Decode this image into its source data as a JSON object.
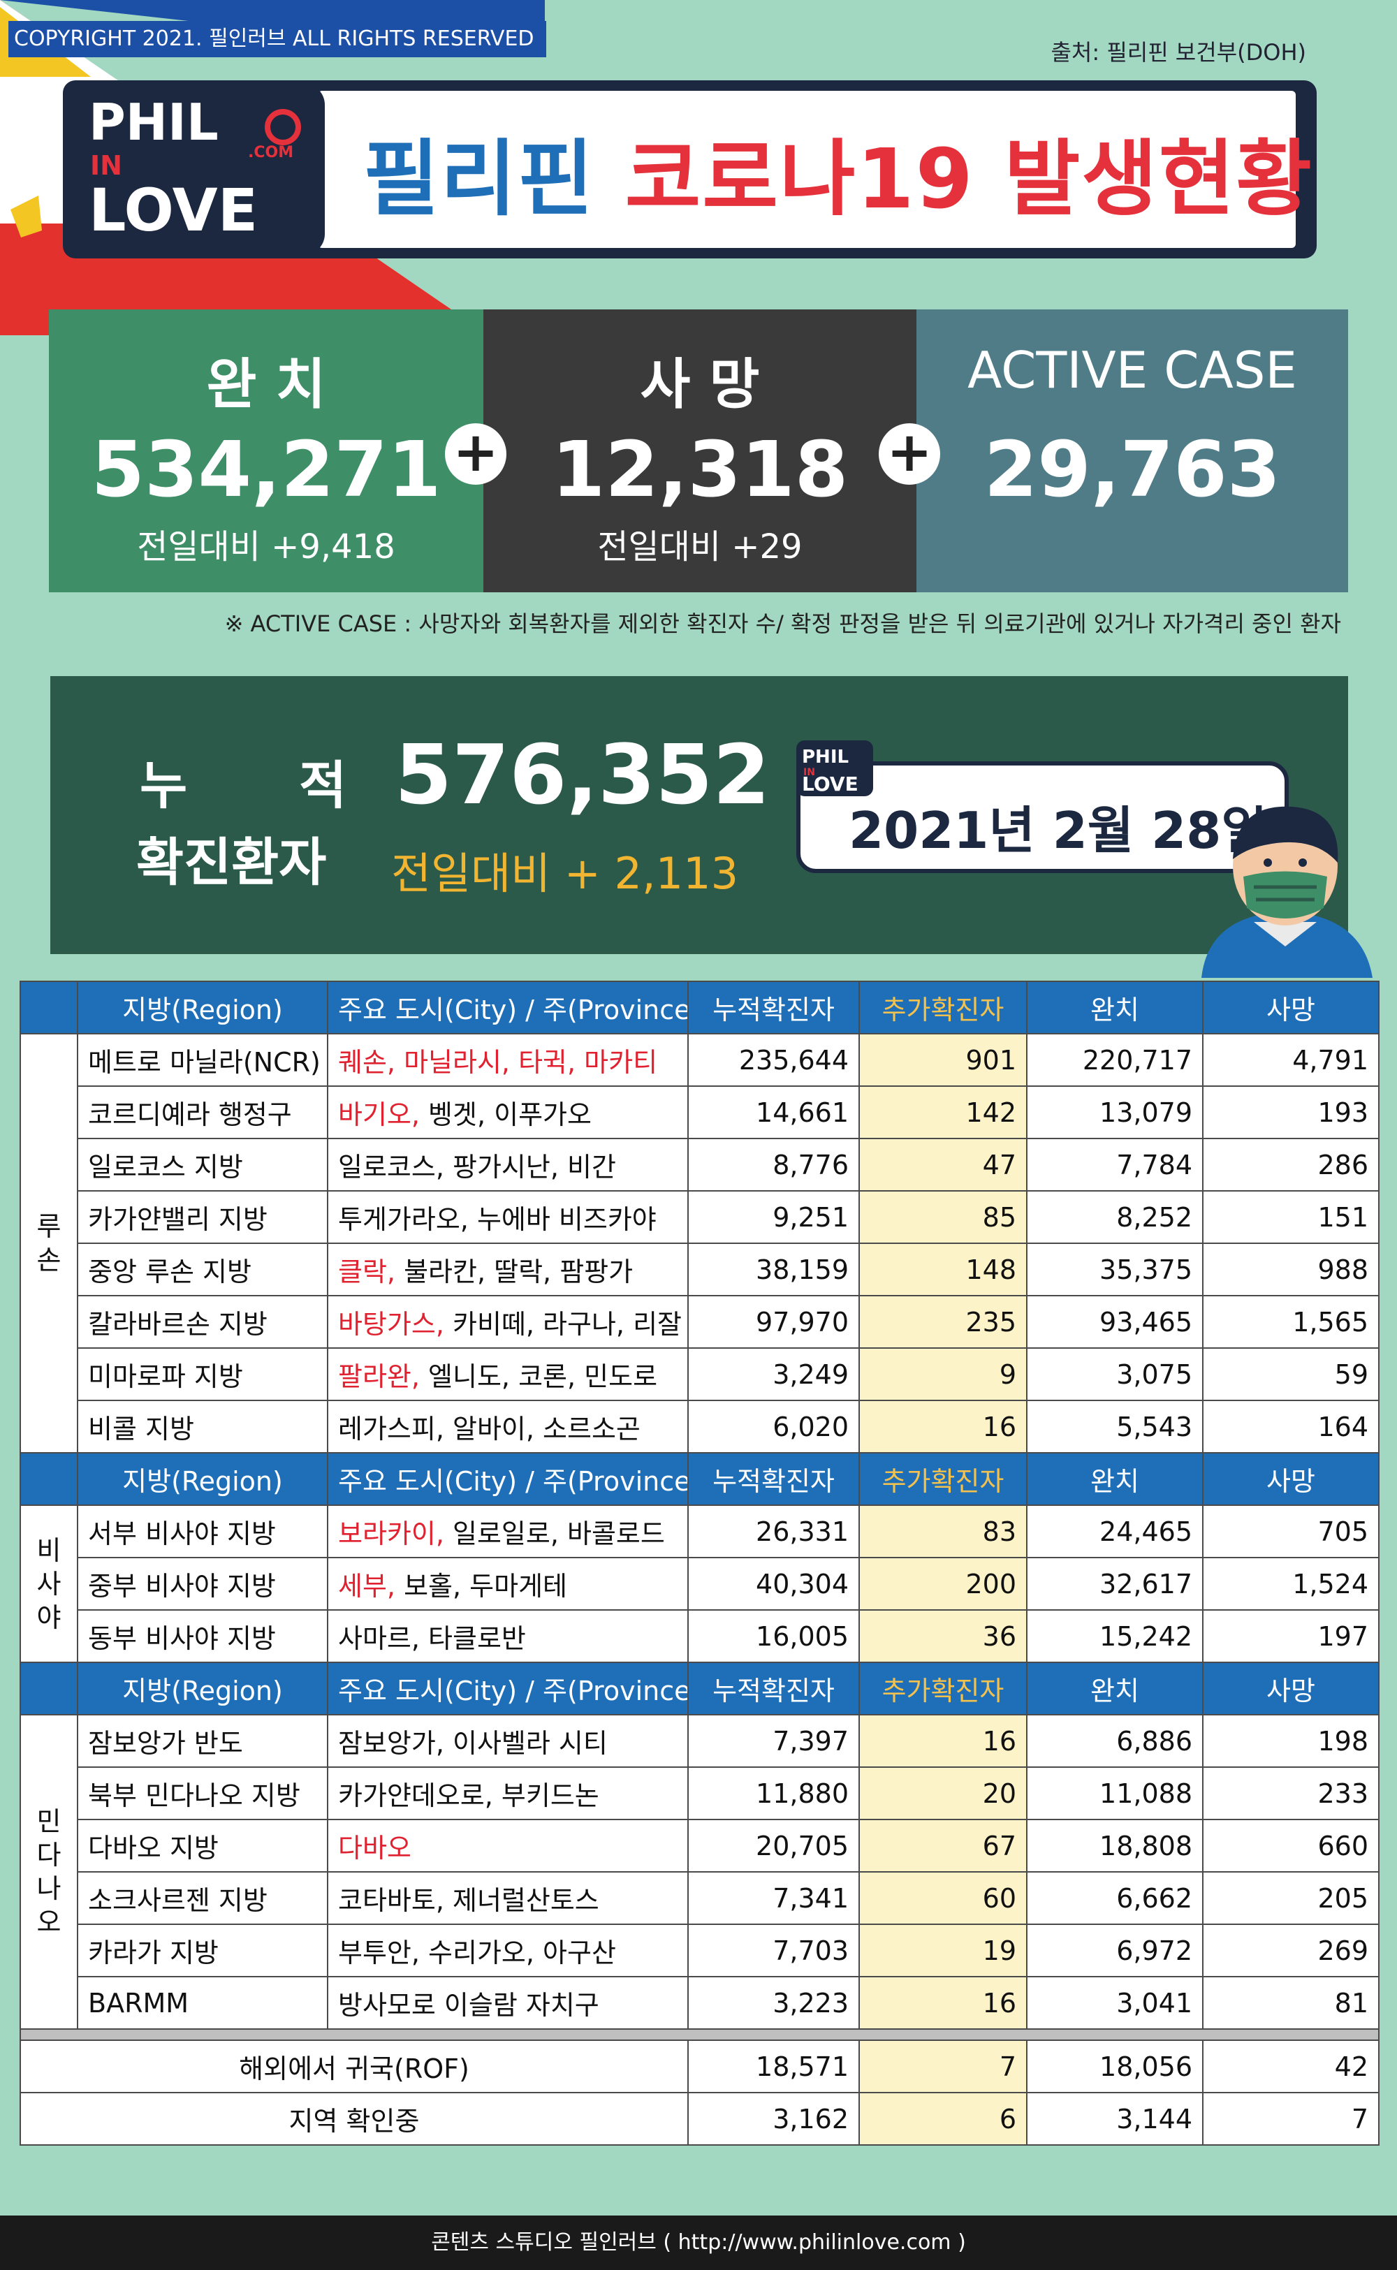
{
  "copyright": "COPYRIGHT 2021. 필인러브 ALL RIGHTS RESERVED",
  "source": "출처: 필리핀 보건부(DOH)",
  "logo": {
    "line1": "PHIL",
    "line2": "IN",
    "line3": "LOVE",
    "dotcom": ".COM"
  },
  "title": {
    "part1": "필리핀",
    "part2": "코로나19 발생현황"
  },
  "stats": {
    "recovered": {
      "label": "완 치",
      "value": "534,271",
      "change": "전일대비 +9,418"
    },
    "deaths": {
      "label": "사 망",
      "value": "12,318",
      "change": "전일대비 +29"
    },
    "active": {
      "label": "ACTIVE CASE",
      "value": "29,763"
    },
    "plus": "+"
  },
  "note": "※ ACTIVE CASE : 사망자와 회복환자를 제외한 확진자 수/ 확정 판정을 받은 뒤 의료기관에 있거나 자가격리 중인 환자",
  "cumulative": {
    "label1": "누적",
    "label2": "확진환자",
    "value": "576,352",
    "change": "전일대비 + 2,113"
  },
  "date": "2021년 2월 28일",
  "colors": {
    "title_blue": "#1f6fb8",
    "title_red": "#e5313b",
    "recovered": "#3e8e67",
    "deaths": "#3a3a3a",
    "active": "#4f7c87",
    "cumulative": "#2b5a4a",
    "table_header": "#1f6fb8",
    "highlight": "#fdf3c8",
    "accent_red": "#e0212f"
  },
  "table": {
    "headers": [
      "지방(Region)",
      "주요 도시(City) / 주(Province)",
      "누적확진자",
      "추가확진자",
      "완치",
      "사망"
    ],
    "groups": [
      {
        "name": "루손",
        "rows": [
          {
            "region": "메트로 마닐라(NCR)",
            "city_red": "퀘손, 마닐라시, 타귁, 마카티",
            "city": "",
            "total": "235,644",
            "added": "901",
            "recovered": "220,717",
            "deaths": "4,791"
          },
          {
            "region": "코르디예라 행정구",
            "city_red": "바기오,",
            "city": " 벵겟, 이푸가오",
            "total": "14,661",
            "added": "142",
            "recovered": "13,079",
            "deaths": "193"
          },
          {
            "region": "일로코스 지방",
            "city_red": "",
            "city": "일로코스, 팡가시난, 비간",
            "total": "8,776",
            "added": "47",
            "recovered": "7,784",
            "deaths": "286"
          },
          {
            "region": "카가얀밸리 지방",
            "city_red": "",
            "city": "투게가라오, 누에바 비즈카야",
            "total": "9,251",
            "added": "85",
            "recovered": "8,252",
            "deaths": "151"
          },
          {
            "region": "중앙 루손 지방",
            "city_red": "클락,",
            "city": " 불라칸, 딸락, 팜팡가",
            "total": "38,159",
            "added": "148",
            "recovered": "35,375",
            "deaths": "988"
          },
          {
            "region": "칼라바르손 지방",
            "city_red": "바탕가스,",
            "city": " 카비떼, 라구나, 리잘",
            "total": "97,970",
            "added": "235",
            "recovered": "93,465",
            "deaths": "1,565"
          },
          {
            "region": "미마로파 지방",
            "city_red": "팔라완,",
            "city": " 엘니도, 코론, 민도로",
            "total": "3,249",
            "added": "9",
            "recovered": "3,075",
            "deaths": "59"
          },
          {
            "region": "비콜 지방",
            "city_red": "",
            "city": "레가스피, 알바이, 소르소곤",
            "total": "6,020",
            "added": "16",
            "recovered": "5,543",
            "deaths": "164"
          }
        ]
      },
      {
        "name": "비사야",
        "rows": [
          {
            "region": "서부 비사야 지방",
            "city_red": "보라카이,",
            "city": " 일로일로, 바콜로드",
            "total": "26,331",
            "added": "83",
            "recovered": "24,465",
            "deaths": "705"
          },
          {
            "region": "중부 비사야 지방",
            "city_red": "세부,",
            "city": " 보홀, 두마게테",
            "total": "40,304",
            "added": "200",
            "recovered": "32,617",
            "deaths": "1,524"
          },
          {
            "region": "동부 비사야 지방",
            "city_red": "",
            "city": "사마르, 타클로반",
            "total": "16,005",
            "added": "36",
            "recovered": "15,242",
            "deaths": "197"
          }
        ]
      },
      {
        "name": "민다나오",
        "rows": [
          {
            "region": "잠보앙가 반도",
            "city_red": "",
            "city": "잠보앙가, 이사벨라 시티",
            "total": "7,397",
            "added": "16",
            "recovered": "6,886",
            "deaths": "198"
          },
          {
            "region": "북부 민다나오 지방",
            "city_red": "",
            "city": "카가얀데오로, 부키드논",
            "total": "11,880",
            "added": "20",
            "recovered": "11,088",
            "deaths": "233"
          },
          {
            "region": "다바오 지방",
            "city_red": "다바오",
            "city": "",
            "total": "20,705",
            "added": "67",
            "recovered": "18,808",
            "deaths": "660"
          },
          {
            "region": "소크사르젠 지방",
            "city_red": "",
            "city": "코타바토, 제너럴산토스",
            "total": "7,341",
            "added": "60",
            "recovered": "6,662",
            "deaths": "205"
          },
          {
            "region": "카라가 지방",
            "city_red": "",
            "city": "부투안, 수리가오, 아구산",
            "total": "7,703",
            "added": "19",
            "recovered": "6,972",
            "deaths": "269"
          },
          {
            "region": "BARMM",
            "city_red": "",
            "city": "방사모로 이슬람 자치구",
            "total": "3,223",
            "added": "16",
            "recovered": "3,041",
            "deaths": "81"
          }
        ]
      }
    ],
    "extra": [
      {
        "label": "해외에서 귀국(ROF)",
        "total": "18,571",
        "added": "7",
        "recovered": "18,056",
        "deaths": "42"
      },
      {
        "label": "지역 확인중",
        "total": "3,162",
        "added": "6",
        "recovered": "3,144",
        "deaths": "7"
      }
    ]
  },
  "footer": "콘텐츠 스튜디오 필인러브 ( http://www.philinlove.com )"
}
